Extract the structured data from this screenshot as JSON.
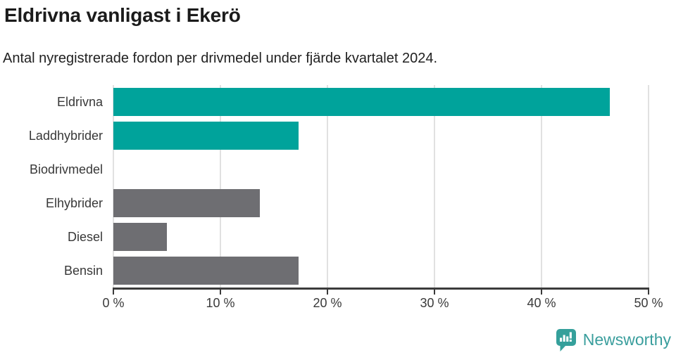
{
  "header": {
    "title": "Eldrivna vanligast i Ekerö",
    "subtitle": "Antal nyregistrerade fordon per drivmedel under fjärde kvartalet 2024."
  },
  "chart_data": {
    "type": "bar",
    "orientation": "horizontal",
    "title": "Eldrivna vanligast i Ekerö",
    "subtitle": "Antal nyregistrerade fordon per drivmedel under fjärde kvartalet 2024.",
    "categories": [
      "Eldrivna",
      "Laddhybrider",
      "Biodrivmedel",
      "Elhybrider",
      "Diesel",
      "Bensin"
    ],
    "values": [
      46.4,
      17.3,
      0,
      13.7,
      5.0,
      17.3
    ],
    "unit": "%",
    "xlim": [
      0,
      50
    ],
    "x_ticks": [
      "0 %",
      "10 %",
      "20 %",
      "30 %",
      "40 %",
      "50 %"
    ],
    "grid": "vertical-gridlines-on",
    "legend": "none",
    "bar_colors": [
      "#00a39b",
      "#00a39b",
      "#6e6e72",
      "#6e6e72",
      "#6e6e72",
      "#6e6e72"
    ]
  },
  "colors": {
    "highlight_teal": "#00a39b",
    "neutral_gray": "#6e6e72",
    "gridline": "#e1e1e1",
    "axis": "#3b3b3b",
    "brand_teal": "#3a9e9d"
  },
  "footer": {
    "brand_name": "Newsworthy"
  }
}
